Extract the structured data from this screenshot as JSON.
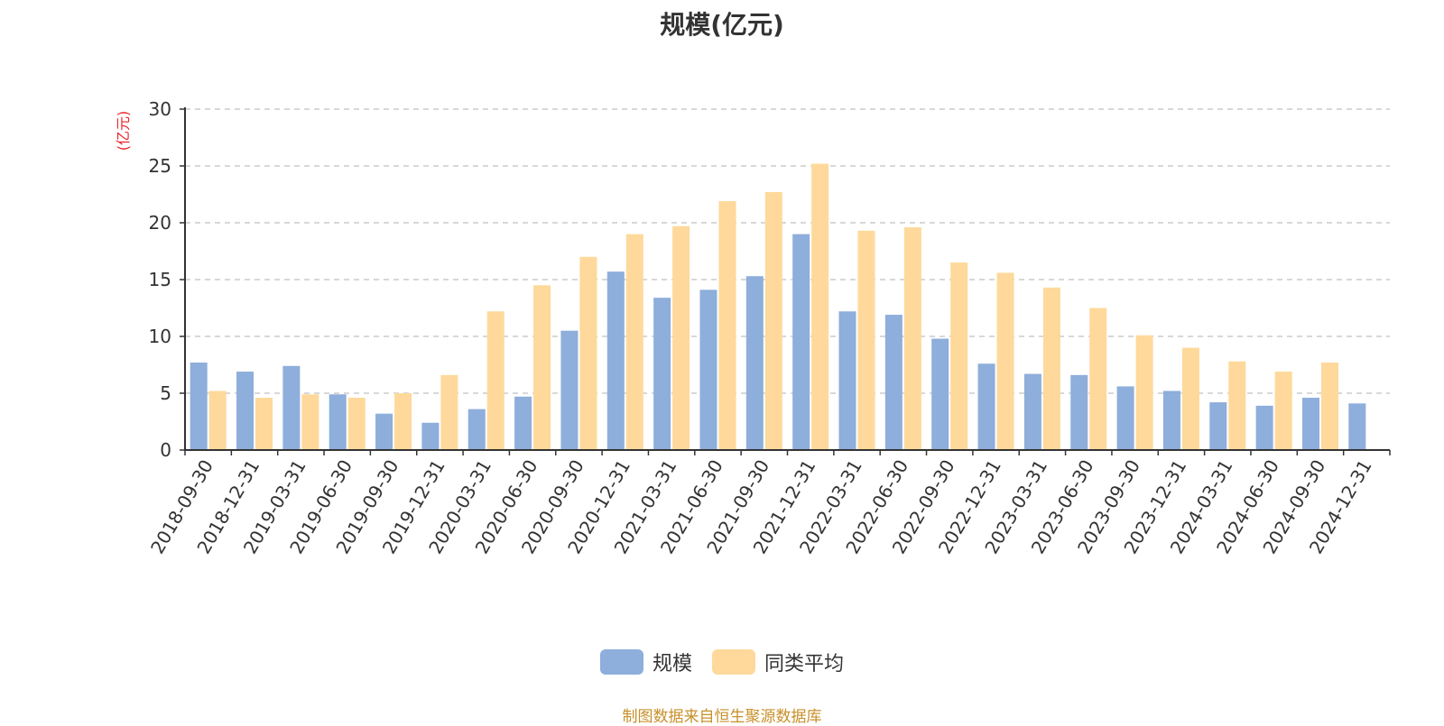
{
  "chart_data": {
    "type": "bar",
    "title": "规模(亿元)",
    "ylabel": "(亿元)",
    "xlabel": "",
    "ylim": [
      0,
      30
    ],
    "yticks": [
      0,
      5,
      10,
      15,
      20,
      25,
      30
    ],
    "grid": true,
    "legend_position": "bottom",
    "categories": [
      "2018-09-30",
      "2018-12-31",
      "2019-03-31",
      "2019-06-30",
      "2019-09-30",
      "2019-12-31",
      "2020-03-31",
      "2020-06-30",
      "2020-09-30",
      "2020-12-31",
      "2021-03-31",
      "2021-06-30",
      "2021-09-30",
      "2021-12-31",
      "2022-03-31",
      "2022-06-30",
      "2022-09-30",
      "2022-12-31",
      "2023-03-31",
      "2023-06-30",
      "2023-09-30",
      "2023-12-31",
      "2024-03-31",
      "2024-06-30",
      "2024-09-30",
      "2024-12-31"
    ],
    "series": [
      {
        "name": "规模",
        "color": "#8eaedb",
        "values": [
          7.7,
          6.9,
          7.4,
          4.9,
          3.2,
          2.4,
          3.6,
          4.7,
          10.5,
          15.7,
          13.4,
          14.1,
          15.3,
          19.0,
          12.2,
          11.9,
          9.8,
          7.6,
          6.7,
          6.6,
          5.6,
          5.2,
          4.2,
          3.9,
          4.6,
          4.1
        ]
      },
      {
        "name": "同类平均",
        "color": "#fed99b",
        "values": [
          5.2,
          4.6,
          4.9,
          4.6,
          5.0,
          6.6,
          12.2,
          14.5,
          17.0,
          19.0,
          19.7,
          21.9,
          22.7,
          25.2,
          19.3,
          19.6,
          16.5,
          15.6,
          14.3,
          12.5,
          10.1,
          9.0,
          7.8,
          6.9,
          7.7,
          null
        ]
      }
    ],
    "source_note": "制图数据来自恒生聚源数据库",
    "unit_color": "#e8262b"
  }
}
